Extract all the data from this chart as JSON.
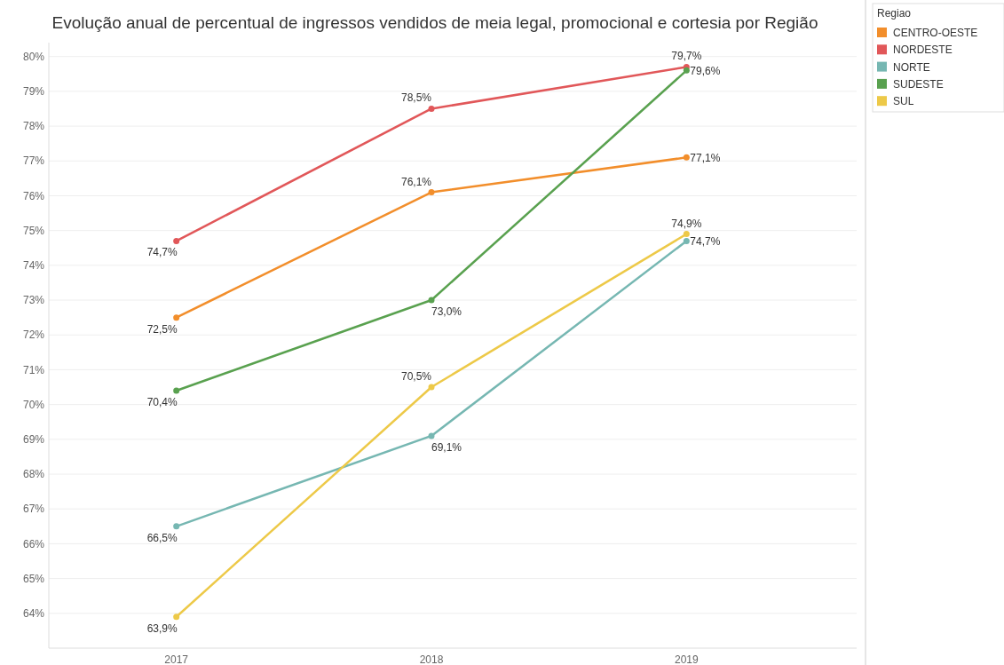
{
  "chart_data": {
    "type": "line",
    "title": "Evolução anual de percentual de ingressos vendidos de meia legal, promocional e cortesia por Região",
    "legend_title": "Regiao",
    "categories": [
      "2017",
      "2018",
      "2019"
    ],
    "series": [
      {
        "name": "CENTRO-OESTE",
        "color": "#f28e2b",
        "values": [
          72.5,
          76.1,
          77.1
        ],
        "value_labels": [
          "72,5%",
          "76,1%",
          "77,1%"
        ]
      },
      {
        "name": "NORDESTE",
        "color": "#e15759",
        "values": [
          74.7,
          78.5,
          79.7
        ],
        "value_labels": [
          "74,7%",
          "78,5%",
          "79,7%"
        ]
      },
      {
        "name": "NORTE",
        "color": "#76b7b2",
        "values": [
          66.5,
          69.1,
          74.7
        ],
        "value_labels": [
          "66,5%",
          "69,1%",
          "74,7%"
        ]
      },
      {
        "name": "SUDESTE",
        "color": "#59a14f",
        "values": [
          70.4,
          73.0,
          79.6
        ],
        "value_labels": [
          "70,4%",
          "73,0%",
          "79,6%"
        ]
      },
      {
        "name": "SUL",
        "color": "#edc948",
        "values": [
          63.9,
          70.5,
          74.9
        ],
        "value_labels": [
          "63,9%",
          "70,5%",
          "74,9%"
        ]
      }
    ],
    "ylim": [
      63,
      80.4
    ],
    "yticks": [
      {
        "value": 64,
        "label": "64%"
      },
      {
        "value": 65,
        "label": "65%"
      },
      {
        "value": 66,
        "label": "66%"
      },
      {
        "value": 67,
        "label": "67%"
      },
      {
        "value": 68,
        "label": "68%"
      },
      {
        "value": 69,
        "label": "69%"
      },
      {
        "value": 70,
        "label": "70%"
      },
      {
        "value": 71,
        "label": "71%"
      },
      {
        "value": 72,
        "label": "72%"
      },
      {
        "value": 73,
        "label": "73%"
      },
      {
        "value": 74,
        "label": "74%"
      },
      {
        "value": 75,
        "label": "75%"
      },
      {
        "value": 76,
        "label": "76%"
      },
      {
        "value": 77,
        "label": "77%"
      },
      {
        "value": 78,
        "label": "78%"
      },
      {
        "value": 79,
        "label": "79%"
      },
      {
        "value": 80,
        "label": "80%"
      }
    ],
    "grid": "y",
    "legend": "top right",
    "marker": "circle",
    "line_style": "solid"
  }
}
